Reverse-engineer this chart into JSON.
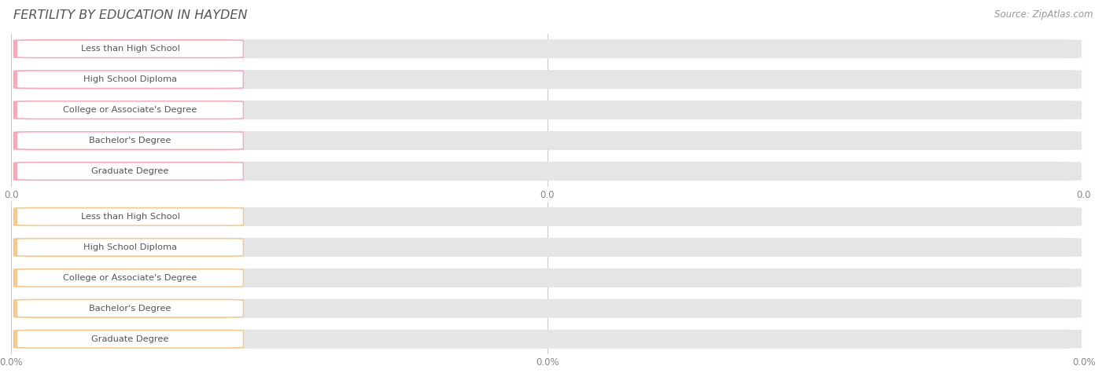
{
  "title": "FERTILITY BY EDUCATION IN HAYDEN",
  "source": "Source: ZipAtlas.com",
  "categories": [
    "Less than High School",
    "High School Diploma",
    "College or Associate's Degree",
    "Bachelor's Degree",
    "Graduate Degree"
  ],
  "top_values": [
    0.0,
    0.0,
    0.0,
    0.0,
    0.0
  ],
  "bottom_values": [
    0.0,
    0.0,
    0.0,
    0.0,
    0.0
  ],
  "top_bar_color": "#f9a8b8",
  "bottom_bar_color": "#f5c98a",
  "bar_bg_color": "#e5e5e5",
  "top_xlabel_values": [
    "0.0",
    "0.0",
    "0.0"
  ],
  "bottom_xlabel_values": [
    "0.0%",
    "0.0%",
    "0.0%"
  ],
  "title_color": "#555555",
  "source_color": "#999999",
  "label_text_color": "#555555",
  "value_text_color": "#ffffff",
  "background_color": "#ffffff",
  "grid_color": "#cccccc"
}
